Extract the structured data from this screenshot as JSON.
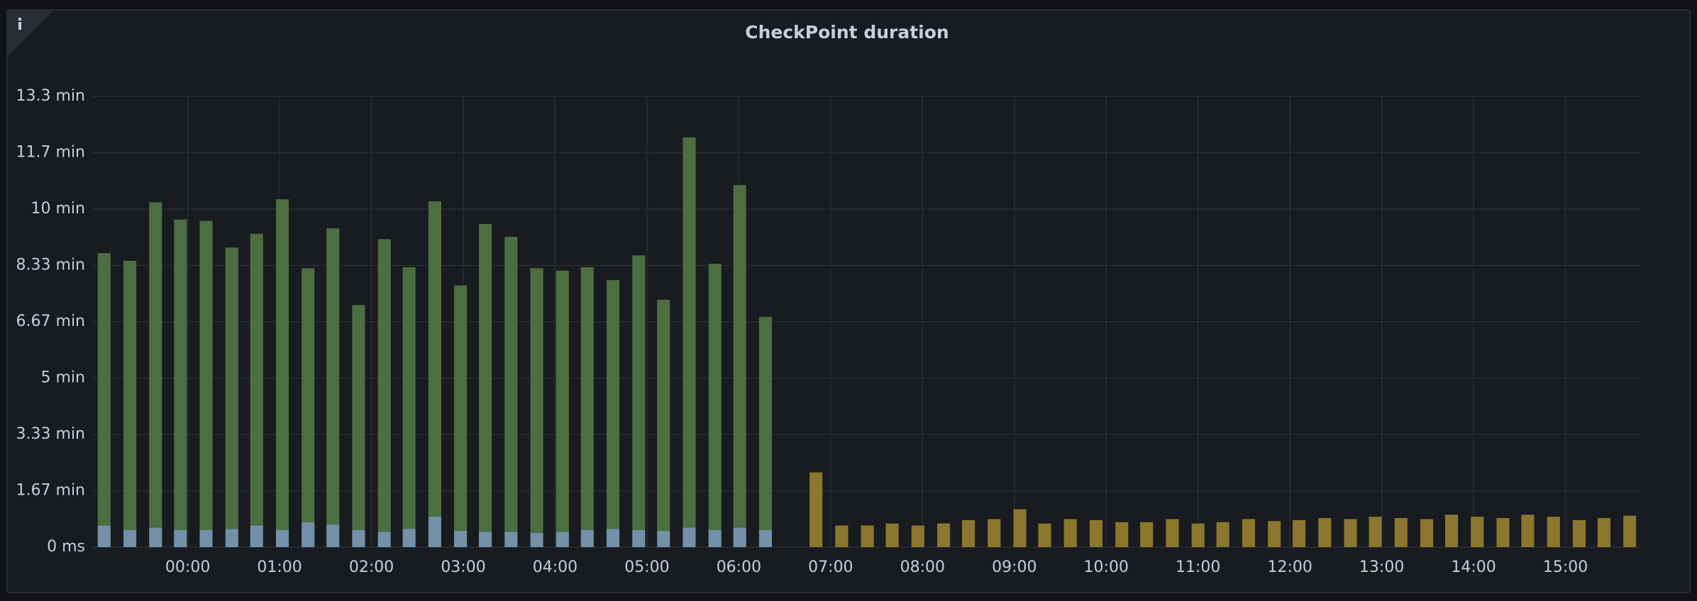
{
  "chart_data": {
    "type": "bar",
    "stacked": true,
    "title": "CheckPoint duration",
    "x": [
      -0.91,
      -0.63,
      -0.35,
      -0.08,
      0.2,
      0.48,
      0.75,
      1.03,
      1.31,
      1.58,
      1.86,
      2.14,
      2.41,
      2.69,
      2.97,
      3.24,
      3.52,
      3.8,
      4.08,
      4.35,
      4.63,
      4.91,
      5.18,
      5.46,
      5.74,
      6.01,
      6.29,
      6.57,
      6.84,
      7.12,
      7.4,
      7.67,
      7.95,
      8.23,
      8.5,
      8.78,
      9.06,
      9.33,
      9.61,
      9.89,
      10.17,
      10.44,
      10.72,
      11.0,
      11.27,
      11.55,
      11.83,
      12.1,
      12.38,
      12.66,
      12.93,
      13.21,
      13.49,
      13.76,
      14.04,
      14.32,
      14.59,
      14.87,
      15.15,
      15.42,
      15.7
    ],
    "series": [
      {
        "color": "#7391a8",
        "values": [
          0.64,
          0.51,
          0.58,
          0.51,
          0.51,
          0.54,
          0.64,
          0.51,
          0.74,
          0.67,
          0.51,
          0.45,
          0.54,
          0.9,
          0.48,
          0.45,
          0.45,
          0.42,
          0.45,
          0.51,
          0.54,
          0.51,
          0.48,
          0.58,
          0.51,
          0.58,
          0.51,
          null,
          null,
          null,
          null,
          null,
          null,
          null,
          null,
          null,
          null,
          null,
          null,
          null,
          null,
          null,
          null,
          null,
          null,
          null,
          null,
          null,
          null,
          null,
          null,
          null,
          null,
          null,
          null,
          null,
          null,
          null,
          null,
          null,
          null
        ]
      },
      {
        "color": "#4d6e40",
        "values": [
          8.06,
          7.96,
          9.62,
          9.18,
          9.14,
          8.32,
          8.63,
          9.78,
          7.51,
          8.76,
          6.65,
          8.66,
          7.74,
          9.33,
          7.26,
          9.11,
          8.73,
          7.83,
          7.73,
          7.77,
          7.36,
          8.12,
          6.84,
          11.54,
          7.87,
          10.13,
          6.3,
          null,
          null,
          null,
          null,
          null,
          null,
          null,
          null,
          null,
          null,
          null,
          null,
          null,
          null,
          null,
          null,
          null,
          null,
          null,
          null,
          null,
          null,
          null,
          null,
          null,
          null,
          null,
          null,
          null,
          null,
          null,
          null,
          null,
          null
        ]
      },
      {
        "color": "#8b772e",
        "values": [
          null,
          null,
          null,
          null,
          null,
          null,
          null,
          null,
          null,
          null,
          null,
          null,
          null,
          null,
          null,
          null,
          null,
          null,
          null,
          null,
          null,
          null,
          null,
          null,
          null,
          null,
          null,
          null,
          2.21,
          0.64,
          0.64,
          0.7,
          0.64,
          0.7,
          0.8,
          0.83,
          1.12,
          0.7,
          0.83,
          0.8,
          0.74,
          0.74,
          0.83,
          0.7,
          0.74,
          0.83,
          0.77,
          0.8,
          0.86,
          0.83,
          0.9,
          0.86,
          0.83,
          0.96,
          0.9,
          0.86,
          0.96,
          0.9,
          0.8,
          0.86,
          0.93
        ]
      }
    ],
    "xlim": [
      -1.04,
      15.83
    ],
    "xticks": [
      {
        "value": 0,
        "label": "00:00"
      },
      {
        "value": 1,
        "label": "01:00"
      },
      {
        "value": 2,
        "label": "02:00"
      },
      {
        "value": 3,
        "label": "03:00"
      },
      {
        "value": 4,
        "label": "04:00"
      },
      {
        "value": 5,
        "label": "05:00"
      },
      {
        "value": 6,
        "label": "06:00"
      },
      {
        "value": 7,
        "label": "07:00"
      },
      {
        "value": 8,
        "label": "08:00"
      },
      {
        "value": 9,
        "label": "09:00"
      },
      {
        "value": 10,
        "label": "10:00"
      },
      {
        "value": 11,
        "label": "11:00"
      },
      {
        "value": 12,
        "label": "12:00"
      },
      {
        "value": 13,
        "label": "13:00"
      },
      {
        "value": 14,
        "label": "14:00"
      },
      {
        "value": 15,
        "label": "15:00"
      }
    ],
    "ylim": [
      0,
      13.333
    ],
    "yticks": [
      {
        "value": 0,
        "label": "0 ms"
      },
      {
        "value": 1.667,
        "label": "1.67 min"
      },
      {
        "value": 3.333,
        "label": "3.33 min"
      },
      {
        "value": 5,
        "label": "5 min"
      },
      {
        "value": 6.667,
        "label": "6.67 min"
      },
      {
        "value": 8.333,
        "label": "8.33 min"
      },
      {
        "value": 10,
        "label": "10 min"
      },
      {
        "value": 11.667,
        "label": "11.7 min"
      },
      {
        "value": 13.333,
        "label": "13.3 min"
      }
    ],
    "grid": true
  }
}
